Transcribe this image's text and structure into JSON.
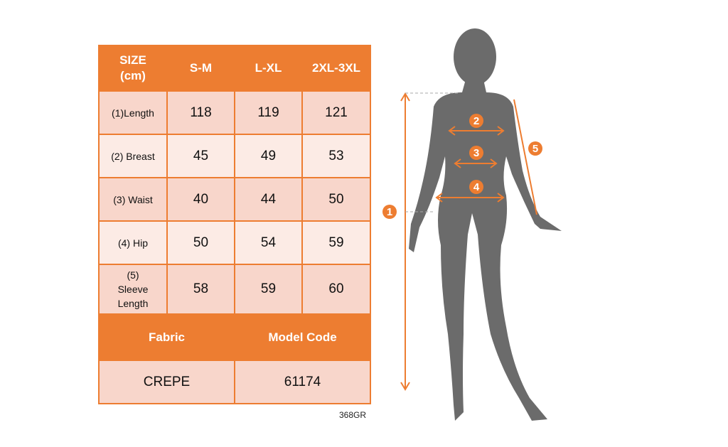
{
  "table": {
    "header": [
      "SIZE (cm)",
      "S-M",
      "L-XL",
      "2XL-3XL"
    ],
    "rows": [
      {
        "label": "(1)Length",
        "values": [
          "118",
          "119",
          "121"
        ]
      },
      {
        "label": "(2) Breast",
        "values": [
          "45",
          "49",
          "53"
        ]
      },
      {
        "label": "(3) Waist",
        "values": [
          "40",
          "44",
          "50"
        ]
      },
      {
        "label": "(4) Hip",
        "values": [
          "50",
          "54",
          "59"
        ]
      },
      {
        "label": "(5) Sleeve Length",
        "values": [
          "58",
          "59",
          "60"
        ]
      }
    ],
    "info_header": [
      "Fabric",
      "Model Code"
    ],
    "info_values": [
      "CREPE",
      "61174"
    ]
  },
  "product_code": "368GR",
  "figure": {
    "markers": [
      "1",
      "2",
      "3",
      "4",
      "5"
    ]
  },
  "colors": {
    "accent": "#ed7d31",
    "row_dark": "#f8d6cb",
    "row_light": "#fcebe5",
    "silhouette": "#6b6b6b"
  }
}
